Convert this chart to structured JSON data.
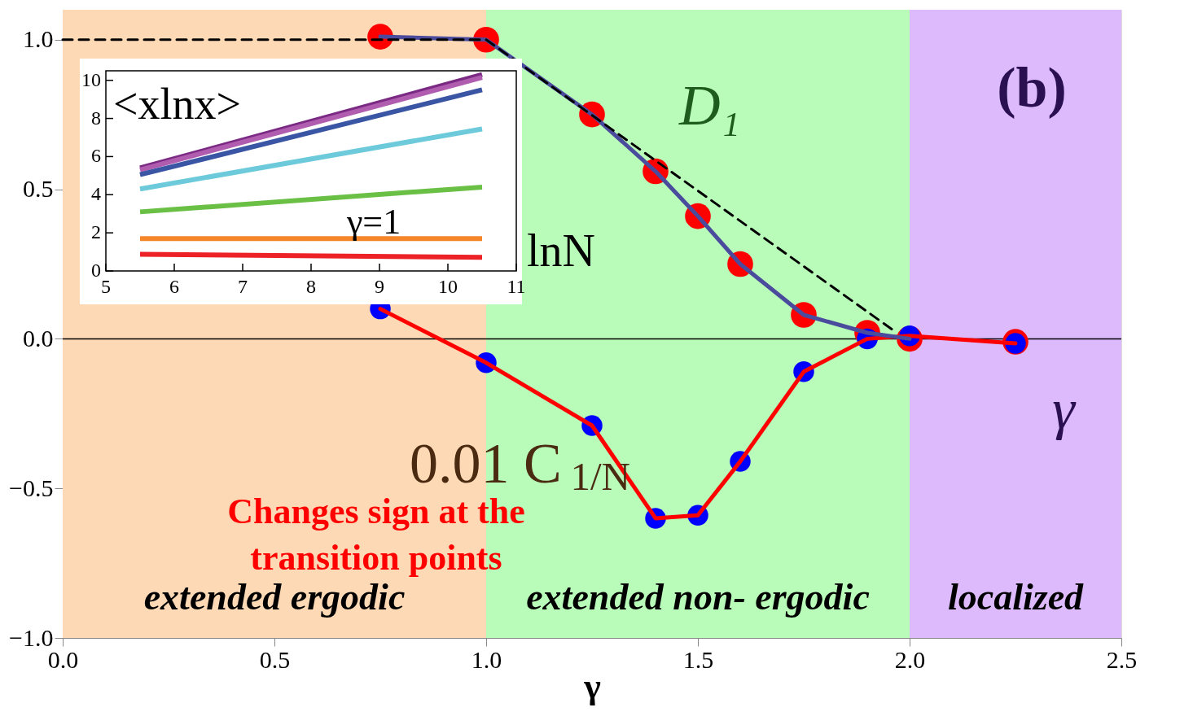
{
  "chart_data": [
    {
      "type": "line",
      "xlabel": "γ",
      "xlim": [
        0,
        2.5
      ],
      "ylim": [
        -1.0,
        1.1
      ],
      "xticks": [
        {
          "value": 0,
          "label": "0.0"
        },
        {
          "value": 0.5,
          "label": "0.5"
        },
        {
          "value": 1,
          "label": "1.0"
        },
        {
          "value": 1.5,
          "label": "1.5"
        },
        {
          "value": 2,
          "label": "2.0"
        },
        {
          "value": 2.5,
          "label": "2.5"
        }
      ],
      "yticks": [
        {
          "value": -1,
          "label": "−1.0"
        },
        {
          "value": -0.5,
          "label": "−0.5"
        },
        {
          "value": 0,
          "label": "0.0"
        },
        {
          "value": 0.5,
          "label": "0.5"
        },
        {
          "value": 1,
          "label": "1.0"
        }
      ],
      "series": [
        {
          "name": "D₁",
          "type": "line",
          "color": "#4b4b9e",
          "x": [
            0.75,
            1.0,
            1.25,
            1.4,
            1.5,
            1.6,
            1.75,
            1.9,
            2.0
          ],
          "values": [
            1.01,
            1.0,
            0.75,
            0.56,
            0.41,
            0.25,
            0.08,
            0.02,
            0.0
          ]
        },
        {
          "type": "line",
          "line_style": "dashed",
          "color": "#000000",
          "x": [
            0,
            1.0,
            1.96
          ],
          "values": [
            1.0,
            1.0,
            0.03
          ]
        },
        {
          "type": "scatter",
          "marker": "circle",
          "color": "#ff0000",
          "x": [
            0.75,
            1.0,
            1.25,
            1.4,
            1.5,
            1.6,
            1.75,
            1.9,
            2.0,
            2.25
          ],
          "values": [
            1.01,
            1.0,
            0.75,
            0.56,
            0.41,
            0.25,
            0.08,
            0.02,
            0.0,
            -0.01
          ]
        },
        {
          "name": "0.01 C$_{1/N}$",
          "type": "line",
          "color": "#ff0000",
          "x": [
            0.75,
            1.0,
            1.25,
            1.4,
            1.5,
            1.6,
            1.75,
            1.9,
            2.0,
            2.25
          ],
          "values": [
            0.1,
            -0.08,
            -0.29,
            -0.6,
            -0.59,
            -0.41,
            -0.11,
            0.0,
            0.01,
            -0.015
          ]
        },
        {
          "type": "scatter",
          "marker": "circle",
          "color": "#0000ff",
          "x": [
            0.75,
            1.0,
            1.25,
            1.4,
            1.5,
            1.6,
            1.75,
            1.9,
            2.0,
            2.25
          ],
          "values": [
            0.1,
            -0.08,
            -0.29,
            -0.6,
            -0.59,
            -0.41,
            -0.11,
            0.0,
            0.01,
            -0.015
          ]
        }
      ],
      "bands": [
        {
          "axis": "x",
          "from": 0,
          "to": 1.0,
          "label": "extended ergodic",
          "color": "#fdd9b5"
        },
        {
          "axis": "x",
          "from": 1.0,
          "to": 2.0,
          "label": "extended non- ergodic",
          "color": "#b9fbb9"
        },
        {
          "axis": "x",
          "from": 2.0,
          "to": 2.5,
          "label": "localized",
          "color": "#dcbafc"
        }
      ],
      "ref_lines": [
        {
          "axis": "y",
          "value": 0,
          "color": "#000000"
        }
      ],
      "annotations": [
        "(b)",
        "γ",
        "Changes sign at the transition points"
      ]
    },
    {
      "type": "line",
      "xlabel": "lnN",
      "ylabel": "<xlnx>",
      "xlim": [
        5,
        11
      ],
      "ylim": [
        0,
        10.5
      ],
      "xticks": [
        5,
        6,
        7,
        8,
        9,
        10,
        11
      ],
      "yticks": [
        0,
        2,
        4,
        6,
        8,
        10
      ],
      "series": [
        {
          "color": "#7b2a84",
          "x": [
            5.5,
            10.5
          ],
          "values": [
            5.4,
            10.3
          ]
        },
        {
          "color": "#b05db0",
          "x": [
            5.5,
            10.5
          ],
          "values": [
            5.3,
            10.15
          ]
        },
        {
          "color": "#3a55a4",
          "x": [
            5.5,
            10.5
          ],
          "values": [
            5.05,
            9.5
          ]
        },
        {
          "color": "#6ccadb",
          "x": [
            5.5,
            10.5
          ],
          "values": [
            4.3,
            7.45
          ]
        },
        {
          "color": "#6abf45",
          "x": [
            5.5,
            10.5
          ],
          "values": [
            3.1,
            4.4
          ]
        },
        {
          "color": "#f6862a",
          "x": [
            5.5,
            10.5
          ],
          "values": [
            1.7,
            1.7
          ]
        },
        {
          "color": "#ec2227",
          "x": [
            5.5,
            10.5
          ],
          "values": [
            0.87,
            0.72
          ]
        }
      ],
      "annotations": [
        "γ=1"
      ]
    }
  ]
}
